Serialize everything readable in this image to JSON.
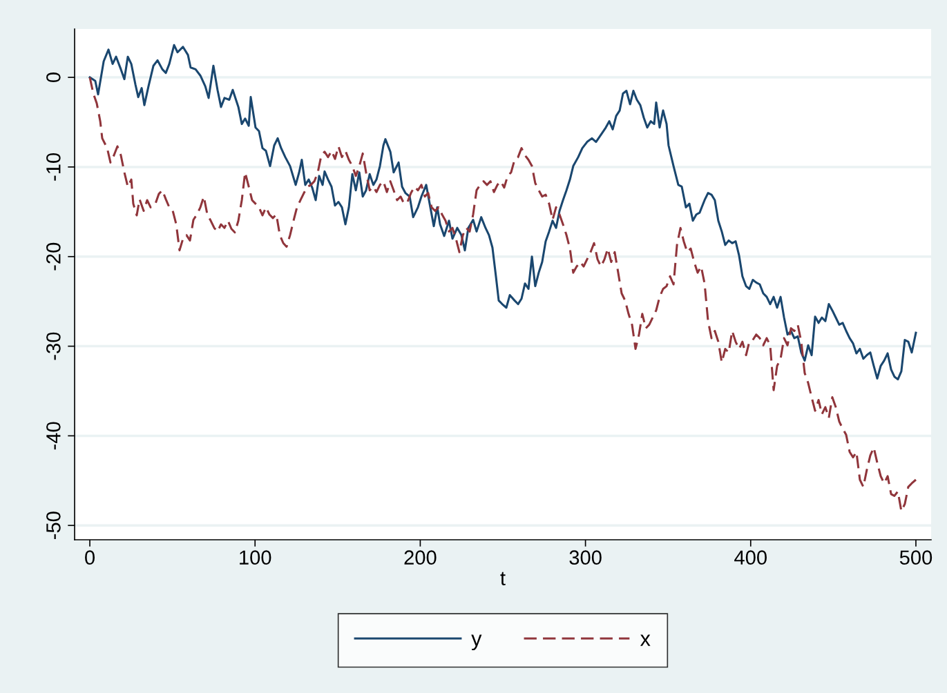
{
  "chart_data": {
    "type": "line",
    "xlabel": "t",
    "xlim": [
      -9.2,
      509.2
    ],
    "ylim": [
      -51.6,
      5.4
    ],
    "xticks": [
      0,
      100,
      200,
      300,
      400,
      500
    ],
    "yticks": [
      -50,
      -40,
      -30,
      -20,
      -10,
      0
    ],
    "grid": "y",
    "legend": "bottom",
    "series": [
      {
        "name": "y",
        "color": "#1a476f",
        "line_style": "solid",
        "x": [
          0,
          3.3,
          5,
          8.4,
          11.3,
          13.8,
          15.9,
          18.8,
          20.9,
          23,
          25.1,
          27.6,
          29.3,
          31.4,
          33,
          35.5,
          38.5,
          41,
          43.9,
          46,
          48.1,
          51,
          53.1,
          56.4,
          59.4,
          61,
          64,
          66.9,
          69.9,
          71.9,
          73.6,
          74.8,
          77.3,
          79.4,
          81.5,
          84.4,
          86.5,
          89.9,
          92,
          94,
          96.2,
          97.4,
          100.3,
          102.4,
          104.5,
          106.6,
          109.1,
          111.6,
          113.7,
          115.8,
          118.3,
          121.2,
          124.6,
          126.7,
          128.3,
          130.4,
          132.5,
          134.6,
          136.7,
          138.8,
          140.9,
          142.1,
          144.2,
          146.3,
          148.4,
          150.5,
          152.6,
          154.7,
          156.8,
          158.9,
          161,
          163.1,
          165.2,
          167.2,
          169.4,
          171.6,
          173.5,
          175.6,
          177.7,
          178.9,
          181.9,
          183.9,
          186.9,
          189,
          191,
          193.6,
          195.7,
          198.6,
          200.7,
          203.6,
          205.7,
          208.2,
          210.3,
          212,
          214.5,
          217.4,
          219.5,
          222.4,
          224.9,
          227,
          229.1,
          232,
          234.1,
          236.9,
          239.5,
          241.6,
          243.7,
          245.8,
          247.5,
          249.6,
          252.1,
          254.2,
          257.1,
          259.2,
          261.3,
          263.4,
          265.5,
          267.6,
          269.6,
          271.7,
          273.8,
          275.9,
          278,
          280.1,
          282.2,
          284.3,
          286.4,
          288.5,
          290.6,
          292.6,
          295.6,
          298.1,
          301,
          303.9,
          306.4,
          309.4,
          312.3,
          314.4,
          316.5,
          318.6,
          320.7,
          322.7,
          324.8,
          327,
          329,
          331.1,
          333.2,
          335.3,
          337.4,
          339.5,
          341.6,
          342.8,
          344.9,
          347,
          349.1,
          350.3,
          353.3,
          356.2,
          358.3,
          360.8,
          362.9,
          365,
          367.1,
          369.1,
          372.1,
          374.2,
          376.3,
          378.3,
          380.4,
          382.5,
          384.6,
          386.7,
          388.8,
          390.9,
          393,
          395,
          397.2,
          399.2,
          401.3,
          403.4,
          405.5,
          407.6,
          409.7,
          411.8,
          413.9,
          416,
          418.1,
          420.2,
          422.3,
          424.4,
          426.4,
          428.5,
          430.6,
          432.7,
          434.8,
          436.9,
          439,
          441.1,
          443.1,
          445.2,
          447.3,
          449.4,
          451.5,
          453.6,
          455.7,
          457.8,
          459.9,
          462,
          464,
          466.1,
          468.2,
          470.3,
          472.4,
          474.5,
          476.6,
          478.7,
          480.8,
          482.9,
          485,
          487,
          489.1,
          491.2,
          493.3,
          495.4,
          497.5,
          500
        ],
        "values": [
          0,
          -0.4,
          -1.9,
          1.8,
          3.1,
          1.5,
          2.3,
          0.9,
          -0.2,
          2.3,
          1.5,
          -0.8,
          -2.2,
          -1.2,
          -3.1,
          -1,
          1.3,
          1.9,
          0.9,
          0.5,
          1.5,
          3.6,
          2.8,
          3.4,
          2.5,
          1.1,
          0.9,
          0.2,
          -1,
          -2.3,
          -0.2,
          1.3,
          -1.4,
          -3.3,
          -2.3,
          -2.5,
          -1.4,
          -3.3,
          -5.2,
          -4.6,
          -5.4,
          -2.2,
          -5.6,
          -6,
          -7.9,
          -8.2,
          -9.9,
          -7.6,
          -6.8,
          -7.9,
          -8.9,
          -9.9,
          -12,
          -10.6,
          -9.2,
          -12,
          -11.4,
          -12.3,
          -13.7,
          -11,
          -12,
          -10.5,
          -11.4,
          -12.2,
          -14.3,
          -13.9,
          -14.5,
          -16.4,
          -14.5,
          -10.8,
          -12.6,
          -10.6,
          -13.3,
          -12.6,
          -10.8,
          -12,
          -11.4,
          -9.9,
          -7.6,
          -6.9,
          -8.3,
          -10.6,
          -9.5,
          -12.2,
          -12.9,
          -13.3,
          -15.6,
          -14.5,
          -13.3,
          -12,
          -14.1,
          -16.6,
          -14.5,
          -16.4,
          -17.7,
          -16,
          -18,
          -16.8,
          -17.6,
          -19.3,
          -16.8,
          -15.9,
          -17.2,
          -15.6,
          -16.8,
          -17.6,
          -19,
          -22.2,
          -24.9,
          -25.3,
          -25.7,
          -24.3,
          -24.9,
          -25.3,
          -24.7,
          -23,
          -23.6,
          -20,
          -23.3,
          -21.8,
          -20.6,
          -18.3,
          -17.2,
          -16,
          -16.8,
          -14.9,
          -13.7,
          -12.6,
          -11.4,
          -9.9,
          -8.9,
          -7.9,
          -7.2,
          -6.8,
          -7.2,
          -6.4,
          -5.6,
          -4.9,
          -5.8,
          -4.3,
          -3.7,
          -1.8,
          -1.5,
          -3,
          -1.5,
          -2.5,
          -3.1,
          -4.5,
          -5.6,
          -4.9,
          -5.2,
          -2.8,
          -5.6,
          -3.7,
          -5.2,
          -7.6,
          -9.9,
          -12,
          -12.2,
          -14.5,
          -14.1,
          -16,
          -15.3,
          -15.1,
          -13.7,
          -12.9,
          -13.1,
          -13.7,
          -16,
          -17.2,
          -18.7,
          -18.2,
          -18.5,
          -18.3,
          -19.9,
          -22.2,
          -23.3,
          -23.6,
          -22.6,
          -22.9,
          -23.1,
          -24.1,
          -24.5,
          -25.3,
          -24.5,
          -25.7,
          -24.5,
          -26.8,
          -28.7,
          -28.3,
          -29.1,
          -28.9,
          -30.7,
          -31.6,
          -29.9,
          -31,
          -26.7,
          -27.4,
          -26.8,
          -27.2,
          -25.3,
          -26,
          -26.8,
          -27.6,
          -27.4,
          -28.3,
          -29.1,
          -29.7,
          -30.8,
          -30.3,
          -31.4,
          -31,
          -30.7,
          -32.2,
          -33.6,
          -32.2,
          -31.6,
          -30.8,
          -32.6,
          -33.4,
          -33.7,
          -32.8,
          -29.3,
          -29.5,
          -30.7,
          -28.5
        ]
      },
      {
        "name": "x",
        "color": "#90353b",
        "line_style": "dashed",
        "x": [
          0,
          2.1,
          4.2,
          6.3,
          7.5,
          10.5,
          12.5,
          14.6,
          16.7,
          18.8,
          20.9,
          23,
          25.1,
          26.3,
          28.4,
          30.1,
          32.6,
          34.7,
          36.8,
          39.7,
          41.8,
          43.9,
          46,
          48.1,
          50.2,
          52.3,
          54.3,
          56.4,
          58.5,
          60.6,
          62.7,
          64.8,
          66.9,
          69,
          71.1,
          73.2,
          75.3,
          77.3,
          79.4,
          81.5,
          83.6,
          85.7,
          87.8,
          89.9,
          92,
          94,
          96.2,
          98.2,
          100.3,
          102.4,
          104.5,
          106.6,
          108.7,
          110.8,
          112.9,
          115,
          117.1,
          119.1,
          121.2,
          123.3,
          125.4,
          127.5,
          129.6,
          131.7,
          133.8,
          135.9,
          138,
          140.1,
          142.1,
          144.2,
          146.3,
          148.4,
          150.5,
          152.6,
          154.7,
          156.8,
          158.9,
          161,
          163.1,
          165.2,
          167.2,
          169.4,
          171.6,
          173.5,
          175.6,
          177.7,
          179.8,
          181.9,
          183.9,
          186,
          188.1,
          190.2,
          192.3,
          194.4,
          196.5,
          198.6,
          200.7,
          202.8,
          204.8,
          206.9,
          209,
          211.1,
          213.2,
          215.3,
          217.4,
          219.5,
          221.6,
          223.7,
          225.8,
          227.8,
          229.9,
          232,
          234.1,
          236.2,
          238.3,
          240.4,
          242.5,
          244.6,
          246.7,
          248.7,
          250.8,
          252.9,
          255,
          257.1,
          259.2,
          261.3,
          263.4,
          265.5,
          267.6,
          269.6,
          271.7,
          273.8,
          275.9,
          278,
          280.1,
          282.2,
          284.3,
          286.4,
          288.5,
          290.6,
          292.6,
          294.7,
          296.8,
          298.9,
          301,
          303.1,
          305.2,
          307.3,
          309.4,
          311.5,
          313.5,
          315.6,
          317.7,
          319.8,
          321.9,
          324,
          326.1,
          328.2,
          330.3,
          332.4,
          334.4,
          336.5,
          338.6,
          340.7,
          342.8,
          344.9,
          347,
          349.1,
          351.2,
          353.3,
          355.4,
          357.5,
          359.5,
          361.6,
          363.7,
          365.8,
          367.9,
          370,
          372.1,
          374.2,
          376.3,
          378.3,
          380.4,
          382.5,
          384.6,
          386.7,
          388.8,
          390.9,
          393,
          395,
          397.2,
          399.2,
          401.3,
          403.4,
          405.5,
          407.6,
          409.7,
          411.8,
          413.9,
          416,
          418.1,
          420.2,
          422.3,
          424.4,
          426.4,
          428.5,
          430.6,
          432.7,
          434.8,
          436.9,
          439,
          441.1,
          443.1,
          445.2,
          447.3,
          449.4,
          451.5,
          453.6,
          455.7,
          457.8,
          459.9,
          462,
          464,
          466.1,
          468.2,
          470.3,
          472.4,
          474.5,
          476.6,
          478.7,
          480.8,
          482.9,
          485,
          487,
          489.1,
          491.2,
          493.3,
          495.4,
          497.5,
          500
        ],
        "values": [
          0,
          -1.8,
          -2.9,
          -4.9,
          -6.8,
          -7.9,
          -9.5,
          -8.7,
          -7.7,
          -8.7,
          -10.6,
          -12.2,
          -11.4,
          -14.1,
          -15.4,
          -13.6,
          -14.9,
          -13.7,
          -14.5,
          -14.1,
          -13,
          -12.6,
          -13.6,
          -14.5,
          -14.9,
          -16.4,
          -19.3,
          -18,
          -17.6,
          -18.2,
          -15.9,
          -15.3,
          -14.5,
          -13.3,
          -15.3,
          -16,
          -16.8,
          -17.2,
          -16.4,
          -16.8,
          -16,
          -16.9,
          -17.3,
          -16,
          -13.7,
          -10.6,
          -12.2,
          -13.7,
          -14.1,
          -14.5,
          -15.4,
          -14.5,
          -15.3,
          -15.7,
          -15.3,
          -17.6,
          -18.5,
          -18.9,
          -17.6,
          -16,
          -14.5,
          -13.7,
          -12.9,
          -12.2,
          -12,
          -11.6,
          -10.6,
          -8.7,
          -8.3,
          -8.9,
          -8.2,
          -9.1,
          -7.7,
          -8.9,
          -8.2,
          -9.2,
          -9.9,
          -11,
          -9.9,
          -8.5,
          -10.6,
          -12.6,
          -12.2,
          -12.8,
          -12,
          -11.6,
          -12.8,
          -11.6,
          -12.6,
          -13.7,
          -13.3,
          -14.1,
          -13.9,
          -12.9,
          -12.2,
          -12.6,
          -12,
          -13.3,
          -12.9,
          -14.5,
          -14.9,
          -14.5,
          -15.3,
          -16,
          -17.2,
          -16.8,
          -18,
          -19.5,
          -17.6,
          -16.8,
          -17.2,
          -15.3,
          -12.6,
          -12,
          -11.6,
          -12,
          -11.6,
          -12.8,
          -12,
          -11.6,
          -12.3,
          -11,
          -10.6,
          -9.2,
          -8.9,
          -7.9,
          -8.7,
          -9.2,
          -9.9,
          -11.8,
          -12.6,
          -13.3,
          -13.1,
          -14.1,
          -15.9,
          -14.5,
          -15.3,
          -16.4,
          -17.6,
          -19.1,
          -21.8,
          -21.1,
          -20.6,
          -21.1,
          -20.3,
          -19.5,
          -18.5,
          -20.3,
          -21.1,
          -20.3,
          -19.1,
          -20.6,
          -19.5,
          -21.8,
          -24.1,
          -24.9,
          -26.4,
          -27.6,
          -30.3,
          -28.7,
          -26.4,
          -28,
          -27.6,
          -26.8,
          -26,
          -24.5,
          -23.6,
          -23.3,
          -22.2,
          -23.1,
          -18.7,
          -16.8,
          -18.3,
          -19.5,
          -19.1,
          -20.6,
          -21.8,
          -21.1,
          -23,
          -27.2,
          -29.1,
          -28.3,
          -29.5,
          -31.8,
          -30.3,
          -30.7,
          -28.3,
          -29.5,
          -30.3,
          -29.5,
          -31,
          -29.5,
          -29.3,
          -28.7,
          -29.1,
          -29.9,
          -29.1,
          -29.9,
          -34.9,
          -32.2,
          -31.4,
          -29.1,
          -29.9,
          -28,
          -28.3,
          -27.6,
          -29.5,
          -33,
          -34.1,
          -35.7,
          -37.2,
          -36,
          -37.6,
          -36.8,
          -38,
          -35.7,
          -36.8,
          -38.4,
          -39.2,
          -39.9,
          -41.8,
          -42.4,
          -41.8,
          -44.9,
          -45.7,
          -43.8,
          -42.2,
          -41.3,
          -43,
          -44.5,
          -45.3,
          -44.5,
          -46.5,
          -46.7,
          -46.2,
          -48.4,
          -47.6,
          -45.7,
          -45.3,
          -44.9
        ]
      }
    ]
  }
}
